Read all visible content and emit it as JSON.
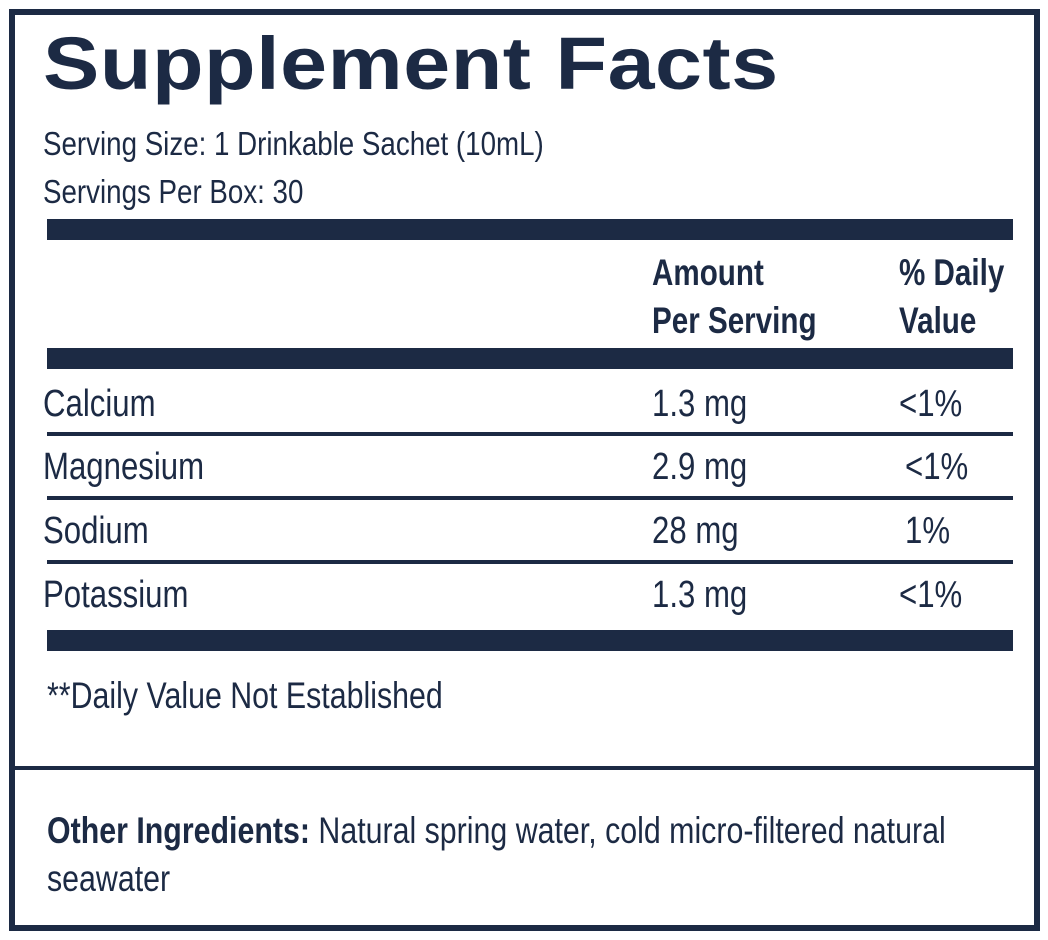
{
  "title": "Supplement Facts",
  "serving_size": "Serving Size: 1 Drinkable Sachet (10mL)",
  "servings_per_box": "Servings Per Box: 30",
  "table": {
    "header": {
      "amount_line1": "Amount",
      "amount_line2": "Per Serving",
      "dv_line1": "% Daily",
      "dv_line2": "Value"
    },
    "rows": [
      {
        "name": "Calcium",
        "amount": "1.3 mg",
        "dv": "<1%"
      },
      {
        "name": "Magnesium",
        "amount": "2.9 mg",
        "dv": "<1%"
      },
      {
        "name": "Sodium",
        "amount": "28 mg",
        "dv": "1%"
      },
      {
        "name": "Potassium",
        "amount": "1.3 mg",
        "dv": "<1%"
      }
    ]
  },
  "footnote": "**Daily Value Not Established",
  "other_ingredients": {
    "label": "Other Ingredients:",
    "text": " Natural spring water, cold micro-filtered natural seawater"
  },
  "colors": {
    "navy": "#1c2a44"
  }
}
